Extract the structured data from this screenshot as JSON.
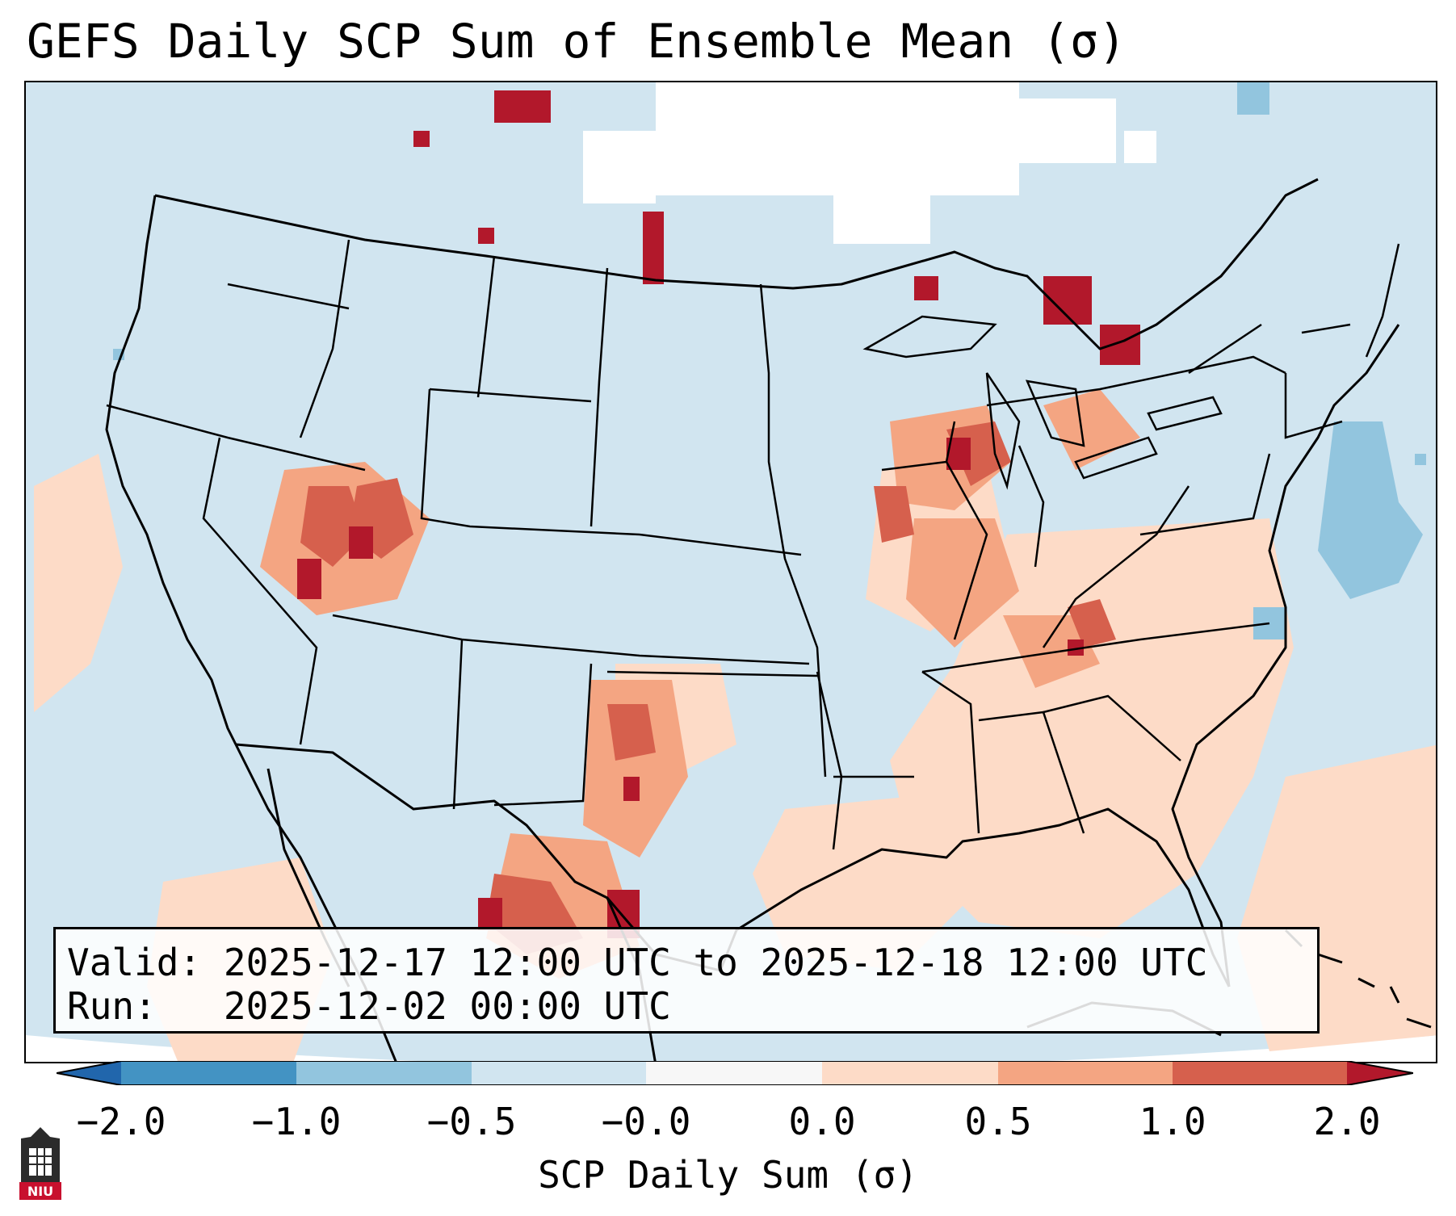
{
  "title": "GEFS Daily SCP Sum of Ensemble Mean (σ)",
  "info": {
    "valid_label": "Valid:",
    "valid_value": "2025-12-17 12:00 UTC to 2025-12-18 12:00 UTC",
    "run_label": "Run:",
    "run_value": "2025-12-02 00:00 UTC"
  },
  "colorbar": {
    "label": "SCP Daily Sum (σ)",
    "ticks": [
      "−2.0",
      "−1.0",
      "−0.5",
      "−0.0",
      "0.0",
      "0.5",
      "1.0",
      "2.0"
    ],
    "colors": {
      "min_extend": "#2166ac",
      "c1": "#4393c3",
      "c2": "#92c5de",
      "c3": "#d1e5f0",
      "c4": "#f7f7f7",
      "c5": "#fddbc7",
      "c6": "#f4a582",
      "c7": "#d6604d",
      "max_extend": "#b2182b"
    }
  },
  "logo": {
    "text": "NIU"
  },
  "colors": {
    "land_bg": "#d1e5f0",
    "border": "#000000",
    "missing": "#ffffff"
  }
}
